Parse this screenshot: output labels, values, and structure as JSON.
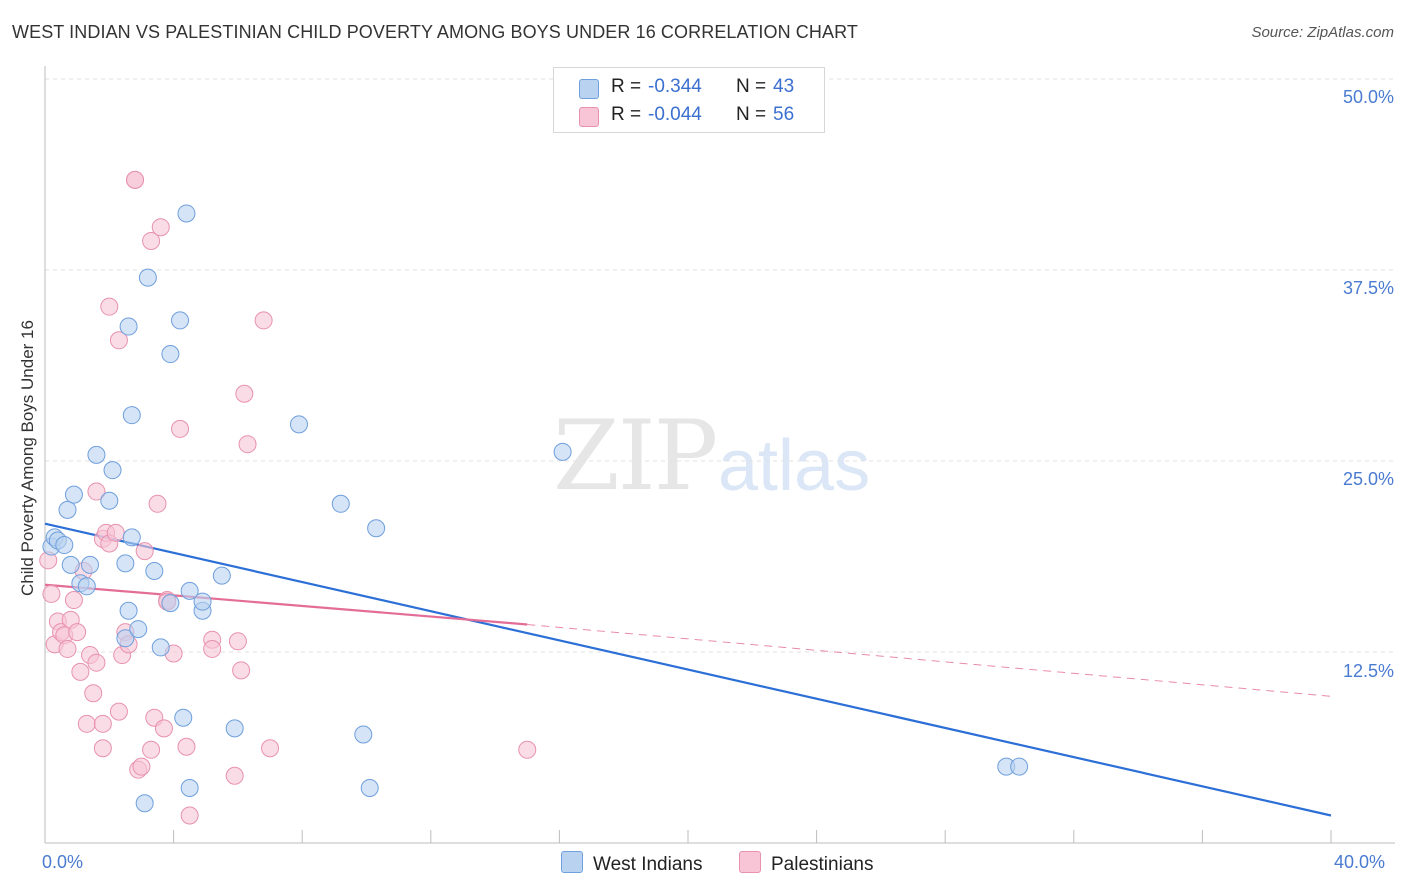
{
  "title": "WEST INDIAN VS PALESTINIAN CHILD POVERTY AMONG BOYS UNDER 16 CORRELATION CHART",
  "source": "Source: ZipAtlas.com",
  "watermark": {
    "zip": "ZIP",
    "atlas": "atlas"
  },
  "colors": {
    "west_indians_fill": "#b9d2f0",
    "west_indians_stroke": "#6f9fdc",
    "west_indians_line": "#2c6fd6",
    "palestinians_fill": "#f7c5d5",
    "palestinians_stroke": "#e892ad",
    "palestinians_line": "#e36d96",
    "tick_text": "#4a7bd0",
    "grid": "#e1e1e1"
  },
  "legend": {
    "r_label": "R =",
    "n_label": "N =",
    "west_indians_r": "-0.344",
    "west_indians_n": "43",
    "palestinians_r": "-0.044",
    "palestinians_n": "56"
  },
  "bottom_legend": {
    "west_indians": "West Indians",
    "palestinians": "Palestinians"
  },
  "chart_data": {
    "type": "scatter",
    "title": "WEST INDIAN VS PALESTINIAN CHILD POVERTY AMONG BOYS UNDER 16 CORRELATION CHART",
    "xlabel": "",
    "ylabel": "Child Poverty Among Boys Under 16",
    "xlim": [
      0,
      40
    ],
    "ylim": [
      0,
      52
    ],
    "x_tick_labels": [
      "0.0%",
      "40.0%"
    ],
    "y_ticks": [
      12.5,
      25.0,
      37.5,
      50.0
    ],
    "y_tick_labels": [
      "12.5%",
      "25.0%",
      "37.5%",
      "50.0%"
    ],
    "grid": true,
    "series": [
      {
        "name": "West Indians",
        "points": [
          [
            0.2,
            19.4
          ],
          [
            0.3,
            20.0
          ],
          [
            0.4,
            19.8
          ],
          [
            0.6,
            19.5
          ],
          [
            0.7,
            21.8
          ],
          [
            0.8,
            18.2
          ],
          [
            0.9,
            22.8
          ],
          [
            1.1,
            17.0
          ],
          [
            1.3,
            16.8
          ],
          [
            1.4,
            18.2
          ],
          [
            1.6,
            25.4
          ],
          [
            2.1,
            24.4
          ],
          [
            2.0,
            22.4
          ],
          [
            2.5,
            18.3
          ],
          [
            2.6,
            15.2
          ],
          [
            2.5,
            13.4
          ],
          [
            2.6,
            33.8
          ],
          [
            2.7,
            20.0
          ],
          [
            2.7,
            28.0
          ],
          [
            2.9,
            14.0
          ],
          [
            3.1,
            2.6
          ],
          [
            3.2,
            37.0
          ],
          [
            3.4,
            17.8
          ],
          [
            3.6,
            12.8
          ],
          [
            3.9,
            32.0
          ],
          [
            3.9,
            15.7
          ],
          [
            4.2,
            34.2
          ],
          [
            4.3,
            8.2
          ],
          [
            4.4,
            41.2
          ],
          [
            4.5,
            3.6
          ],
          [
            4.5,
            16.5
          ],
          [
            4.9,
            15.2
          ],
          [
            4.9,
            15.8
          ],
          [
            5.5,
            17.5
          ],
          [
            5.9,
            7.5
          ],
          [
            7.9,
            27.4
          ],
          [
            9.2,
            22.2
          ],
          [
            9.9,
            7.1
          ],
          [
            10.1,
            3.6
          ],
          [
            10.3,
            20.6
          ],
          [
            16.1,
            25.6
          ],
          [
            29.9,
            5.0
          ],
          [
            30.3,
            5.0
          ]
        ]
      },
      {
        "name": "Palestinians",
        "points": [
          [
            0.1,
            18.5
          ],
          [
            0.2,
            16.3
          ],
          [
            0.3,
            13.0
          ],
          [
            0.4,
            14.5
          ],
          [
            0.5,
            13.8
          ],
          [
            0.6,
            13.6
          ],
          [
            0.7,
            12.7
          ],
          [
            0.8,
            14.6
          ],
          [
            0.9,
            15.9
          ],
          [
            1.0,
            13.8
          ],
          [
            1.1,
            11.2
          ],
          [
            1.2,
            17.8
          ],
          [
            1.3,
            7.8
          ],
          [
            1.4,
            12.3
          ],
          [
            1.5,
            9.8
          ],
          [
            1.6,
            11.8
          ],
          [
            1.6,
            23.0
          ],
          [
            1.8,
            6.2
          ],
          [
            1.8,
            7.8
          ],
          [
            1.8,
            19.9
          ],
          [
            1.9,
            20.3
          ],
          [
            2.0,
            19.6
          ],
          [
            2.0,
            35.1
          ],
          [
            2.2,
            20.3
          ],
          [
            2.3,
            32.9
          ],
          [
            2.3,
            8.6
          ],
          [
            2.4,
            12.3
          ],
          [
            2.5,
            13.8
          ],
          [
            2.6,
            13.0
          ],
          [
            2.8,
            43.4
          ],
          [
            2.8,
            43.4
          ],
          [
            2.9,
            4.8
          ],
          [
            3.0,
            5.0
          ],
          [
            3.1,
            19.1
          ],
          [
            3.3,
            39.4
          ],
          [
            3.3,
            6.1
          ],
          [
            3.4,
            8.2
          ],
          [
            3.5,
            22.2
          ],
          [
            3.6,
            40.3
          ],
          [
            3.7,
            7.5
          ],
          [
            3.8,
            15.9
          ],
          [
            3.8,
            15.8
          ],
          [
            4.0,
            12.4
          ],
          [
            4.2,
            27.1
          ],
          [
            4.4,
            6.3
          ],
          [
            4.5,
            1.8
          ],
          [
            5.2,
            13.3
          ],
          [
            5.2,
            12.7
          ],
          [
            5.9,
            4.4
          ],
          [
            6.0,
            13.2
          ],
          [
            6.1,
            11.3
          ],
          [
            6.2,
            29.4
          ],
          [
            6.3,
            26.1
          ],
          [
            6.8,
            34.2
          ],
          [
            7.0,
            6.2
          ],
          [
            15.0,
            6.1
          ]
        ]
      }
    ],
    "trendlines": [
      {
        "name": "West Indians",
        "x": [
          0,
          40
        ],
        "y": [
          20.9,
          1.8
        ],
        "style": "solid"
      },
      {
        "name": "Palestinians",
        "x": [
          0,
          15
        ],
        "y": [
          16.9,
          14.3
        ],
        "style": "solid"
      },
      {
        "name": "Palestinians",
        "x": [
          15,
          40
        ],
        "y": [
          14.3,
          9.6
        ],
        "style": "dashed"
      }
    ]
  }
}
